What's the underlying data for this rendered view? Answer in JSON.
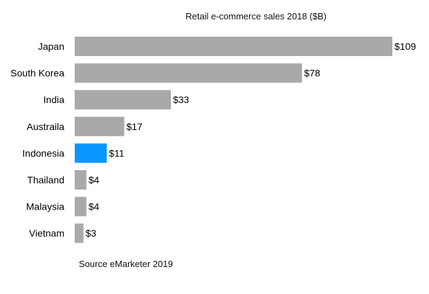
{
  "chart_data": {
    "type": "bar",
    "orientation": "horizontal",
    "title": "Retail e-commerce sales 2018 ($B)",
    "categories": [
      "Japan",
      "South Korea",
      "India",
      "Austraila",
      "Indonesia",
      "Thailand",
      "Malaysia",
      "Vietnam"
    ],
    "values": [
      109,
      78,
      33,
      17,
      11,
      4,
      4,
      3
    ],
    "data_labels": [
      "$109",
      "$78",
      "$33",
      "$17",
      "$11",
      "$4",
      "$4",
      "$3"
    ],
    "highlight": "Indonesia",
    "colors": {
      "default": "#a9a9a9",
      "highlight": "#0a96ff"
    },
    "xlim": [
      0,
      109
    ],
    "grid": false,
    "legend": "none",
    "source": "Source eMarketer 2019"
  }
}
